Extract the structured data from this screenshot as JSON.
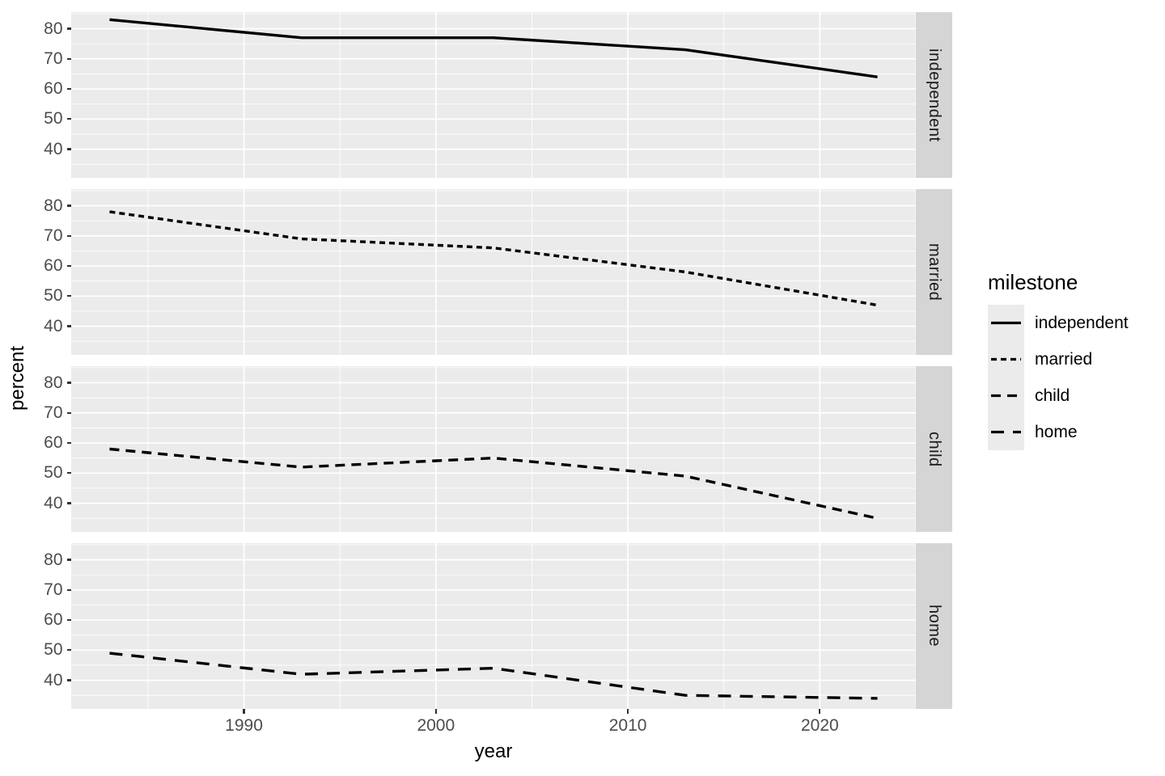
{
  "axes": {
    "y_title": "percent",
    "x_title": "year",
    "y_ticks": [
      "80",
      "70",
      "60",
      "50",
      "40"
    ],
    "x_ticks": [
      "1990",
      "2000",
      "2010",
      "2020"
    ]
  },
  "legend": {
    "title": "milestone",
    "entries": [
      {
        "label": "independent",
        "linetype": "solid"
      },
      {
        "label": "married",
        "linetype": "dotted"
      },
      {
        "label": "child",
        "linetype": "dashed"
      },
      {
        "label": "home",
        "linetype": "longdash"
      }
    ]
  },
  "chart_data": {
    "type": "line",
    "title": "",
    "facet_variable": "milestone",
    "xlabel": "year",
    "ylabel": "percent",
    "x": [
      1983,
      1993,
      2003,
      2013,
      2023
    ],
    "series": [
      {
        "name": "independent",
        "linetype": "solid",
        "values": [
          83,
          77,
          77,
          73,
          64
        ]
      },
      {
        "name": "married",
        "linetype": "dotted",
        "values": [
          78,
          69,
          66,
          58,
          47
        ]
      },
      {
        "name": "child",
        "linetype": "dashed",
        "values": [
          58,
          52,
          55,
          49,
          35
        ]
      },
      {
        "name": "home",
        "linetype": "longdash",
        "values": [
          49,
          42,
          44,
          35,
          34
        ]
      }
    ],
    "x_domain": [
      1981,
      2025
    ],
    "y_domain": [
      30.5,
      85.5
    ],
    "y_major_ticks": [
      80,
      70,
      60,
      50,
      40
    ],
    "x_major_ticks": [
      1990,
      2000,
      2010,
      2020
    ],
    "y_minor_gridlines": [
      85,
      75,
      65,
      55,
      45,
      35
    ],
    "x_minor_gridlines": [
      1985,
      1995,
      2005,
      2015,
      2025
    ],
    "grid": "on",
    "legend_position": "right",
    "colors": {
      "line": "#000000",
      "panel_bg": "#EBEBEB",
      "gridline": "#FFFFFF",
      "strip_bg": "#D5D5D5",
      "strip_text": "#1A1A1A",
      "tick_label": "#4D4D4D",
      "axis_title": "#000000",
      "tick_mark": "#333333"
    }
  }
}
